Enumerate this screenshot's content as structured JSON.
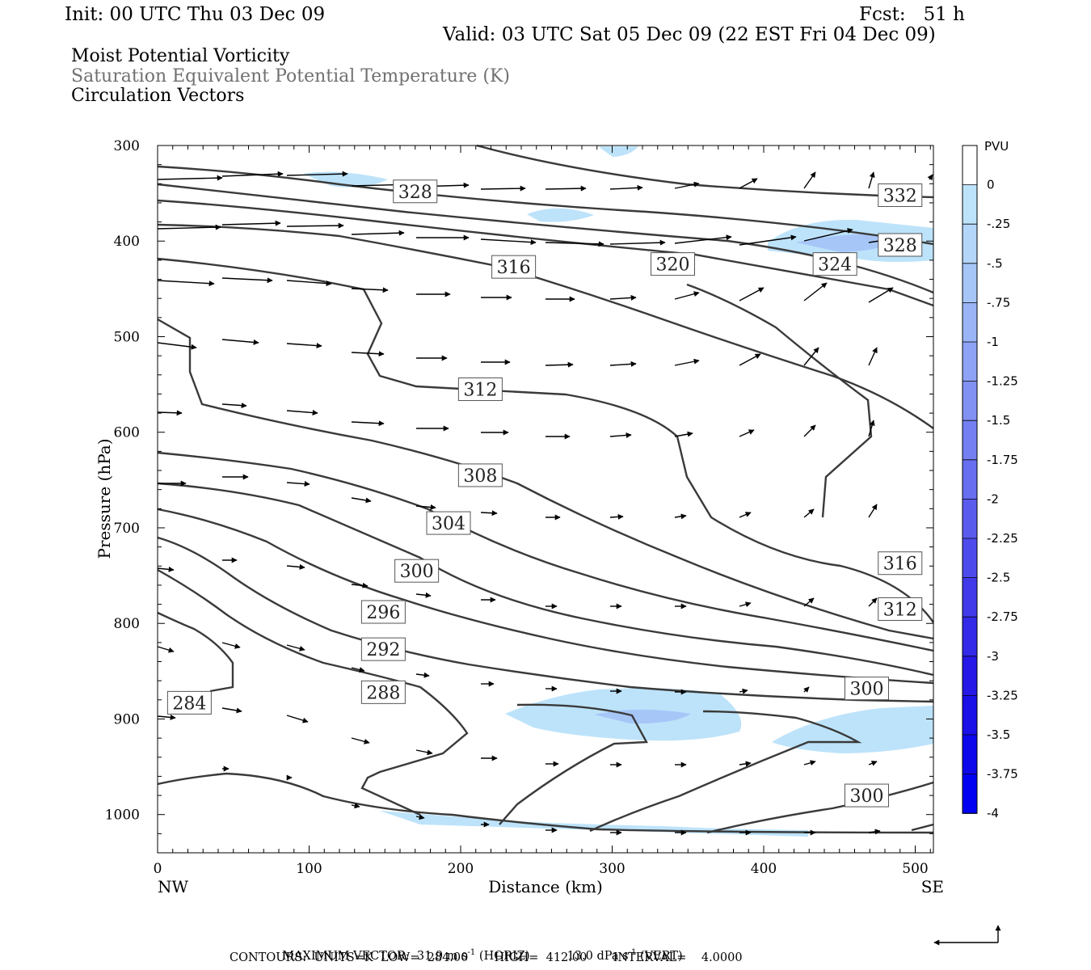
{
  "header": {
    "init": "Init: 00 UTC Thu 03 Dec 09",
    "fcst": "Fcst:   51 h",
    "valid": "Valid: 03 UTC Sat 05 Dec 09 (22 EST Fri 04 Dec 09)"
  },
  "legend": {
    "line1": "Moist Potential Vorticity",
    "line2": "Saturation Equivalent Potential Temperature (K)",
    "line3": "Circulation Vectors",
    "line2_color": "#707070"
  },
  "footer": {
    "max_vector_label": "MAXIMUM VECTOR:",
    "horiz_value": "31.9 m s",
    "horiz_exp": "-1",
    "horiz_tag": "(HORIZ)",
    "vert_value": "13.0 dPa s",
    "vert_exp": "-1",
    "vert_tag": "(VERT)",
    "contours": "CONTOURS:  UNITS=K  LOW=  284.00       HIGH=  412.00       INTERVAL=    4.0000"
  },
  "colors": {
    "contour": "#3a3a3a",
    "pv_light": "#bde3fa",
    "pv_mid": "#a7c6f8",
    "arrow": "#000000"
  },
  "chart_data": {
    "type": "contour",
    "xlabel": "Distance (km)",
    "ylabel": "Pressure (hPa)",
    "xlim": [
      0,
      512
    ],
    "ylim": [
      1040,
      300
    ],
    "x_ticks": [
      "0",
      "100",
      "200",
      "300",
      "400",
      "500"
    ],
    "x_tick_values": [
      0,
      100,
      200,
      300,
      400,
      500
    ],
    "y_ticks": [
      "300",
      "400",
      "500",
      "600",
      "700",
      "800",
      "900",
      "1000"
    ],
    "y_tick_values": [
      300,
      400,
      500,
      600,
      700,
      800,
      900,
      1000
    ],
    "endpoints": {
      "left": "NW",
      "right": "SE"
    },
    "colorbar": {
      "unit": "PVU",
      "labels": [
        "0",
        "-.25",
        "-.5",
        "-.75",
        "-1",
        "-1.25",
        "-1.5",
        "-1.75",
        "-2",
        "-2.25",
        "-2.5",
        "-2.75",
        "-3",
        "-3.25",
        "-3.5",
        "-3.75",
        "-4"
      ],
      "colors": [
        "#ffffff",
        "#bde3fa",
        "#b4d6f9",
        "#a7c6f8",
        "#9ab4f6",
        "#8ea3f5",
        "#8191f3",
        "#7480f1",
        "#676ef0",
        "#5a5cee",
        "#4d4bec",
        "#403aea",
        "#3329e8",
        "#2618e6",
        "#1a10e8",
        "#0d08ec",
        "#0000f2"
      ]
    },
    "contour_labels": [
      {
        "text": "328",
        "x": 170,
        "p": 348
      },
      {
        "text": "332",
        "x": 490,
        "p": 352
      },
      {
        "text": "328",
        "x": 490,
        "p": 404
      },
      {
        "text": "316",
        "x": 235,
        "p": 427
      },
      {
        "text": "320",
        "x": 340,
        "p": 424
      },
      {
        "text": "324",
        "x": 447,
        "p": 424
      },
      {
        "text": "312",
        "x": 213,
        "p": 555
      },
      {
        "text": "308",
        "x": 213,
        "p": 645
      },
      {
        "text": "304",
        "x": 192,
        "p": 695
      },
      {
        "text": "300",
        "x": 171,
        "p": 745
      },
      {
        "text": "296",
        "x": 149,
        "p": 788
      },
      {
        "text": "292",
        "x": 149,
        "p": 827
      },
      {
        "text": "288",
        "x": 149,
        "p": 872
      },
      {
        "text": "284",
        "x": 21,
        "p": 883
      },
      {
        "text": "316",
        "x": 490,
        "p": 737
      },
      {
        "text": "312",
        "x": 490,
        "p": 785
      },
      {
        "text": "300",
        "x": 468,
        "p": 868
      },
      {
        "text": "300",
        "x": 468,
        "p": 980
      }
    ],
    "max_vector": {
      "horiz_m_s": 31.9,
      "vert_dPa_s": 13.0
    }
  }
}
